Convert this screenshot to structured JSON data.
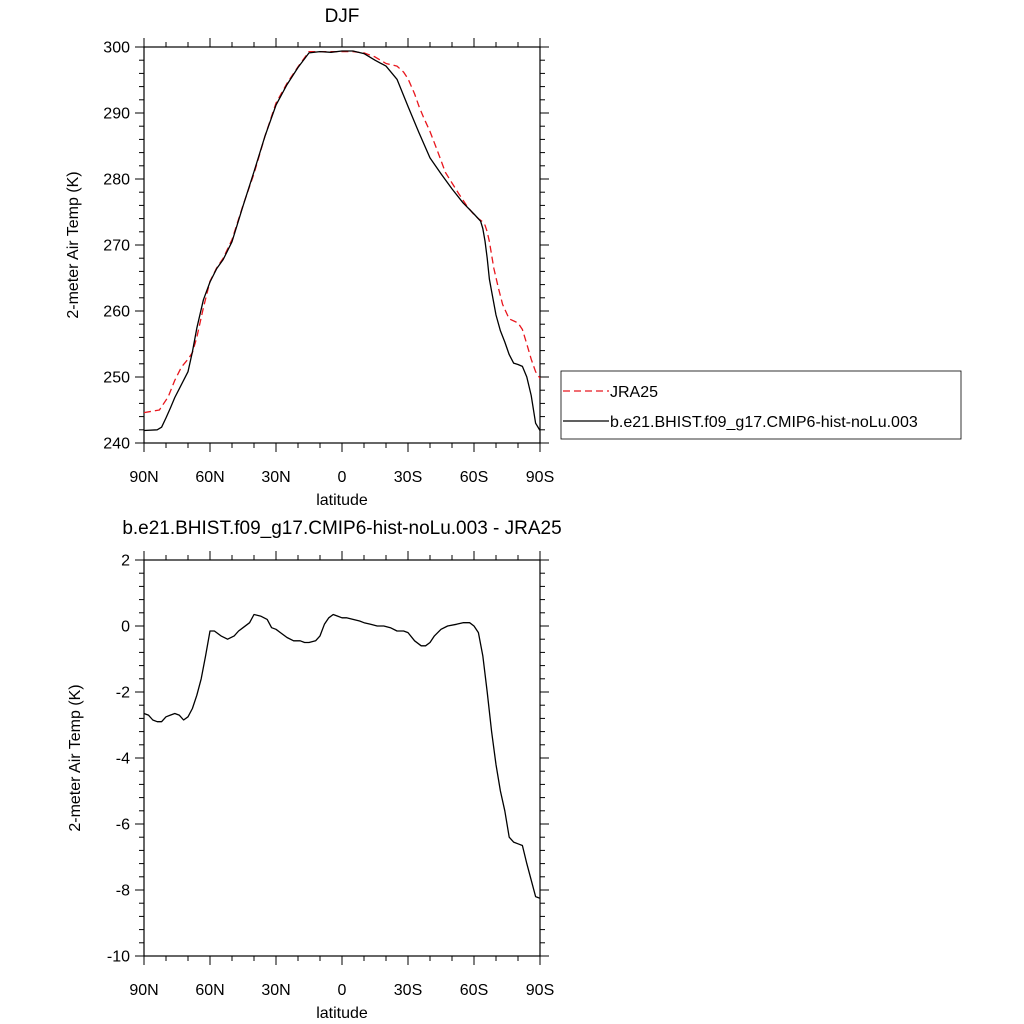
{
  "chart_data": [
    {
      "type": "line",
      "title": "DJF",
      "xlabel": "latitude",
      "ylabel": "2-meter Air Temp (K)",
      "xlim": [
        90,
        -90
      ],
      "ylim": [
        240,
        300
      ],
      "xticks": [
        90,
        60,
        30,
        0,
        -30,
        -60,
        -90
      ],
      "xtick_labels": [
        "90N",
        "60N",
        "30N",
        "0",
        "30S",
        "60S",
        "90S"
      ],
      "yticks": [
        240,
        250,
        260,
        270,
        280,
        290,
        300
      ],
      "ytick_labels": [
        "240",
        "250",
        "260",
        "270",
        "280",
        "290",
        "300"
      ],
      "legend_placement": "right",
      "grid": false,
      "series": [
        {
          "name": "JRA25",
          "color": "#e8161d",
          "dash": "dashed",
          "x": [
            90,
            83,
            79,
            76,
            73,
            70,
            68,
            66,
            63,
            60,
            57,
            54,
            50,
            45,
            40,
            35,
            30,
            25,
            20,
            15,
            10,
            5,
            0,
            -5,
            -10,
            -15,
            -20,
            -25,
            -28,
            -30,
            -33,
            -35,
            -37,
            -40,
            -43,
            -45,
            -47,
            -50,
            -53,
            -55,
            -57,
            -60,
            -62,
            -64,
            -65,
            -66,
            -67,
            -69,
            -71,
            -73,
            -76,
            -80,
            -82,
            -84,
            -86,
            -88,
            -90
          ],
          "y": [
            244.6,
            245.0,
            247.0,
            249.5,
            251.5,
            252.7,
            253.7,
            256.0,
            260.5,
            264.5,
            266.5,
            268.0,
            270.8,
            276.0,
            280.8,
            286.5,
            291.5,
            294.5,
            297.0,
            299.3,
            299.3,
            299.3,
            299.3,
            299.3,
            299.1,
            298.5,
            297.5,
            297.1,
            296.2,
            295.2,
            292.9,
            291.0,
            289.4,
            287.2,
            284.6,
            282.8,
            281.0,
            279.4,
            277.8,
            276.8,
            275.8,
            274.6,
            274.0,
            273.5,
            273.0,
            272.0,
            270.5,
            266.5,
            263.6,
            261.0,
            258.8,
            258.2,
            257.2,
            255.0,
            252.7,
            250.8,
            249.8
          ]
        },
        {
          "name": "b.e21.BHIST.f09_g17.CMIP6-hist-noLu.003",
          "color": "#000000",
          "dash": "solid",
          "x": [
            90,
            84,
            82,
            80,
            78,
            76,
            74,
            72,
            70,
            68,
            66,
            63,
            60,
            57,
            54,
            50,
            45,
            40,
            35,
            30,
            25,
            20,
            15,
            10,
            5,
            0,
            -5,
            -10,
            -15,
            -20,
            -25,
            -30,
            -35,
            -40,
            -45,
            -50,
            -55,
            -60,
            -63,
            -64,
            -65,
            -66,
            -67,
            -68,
            -70,
            -72,
            -74,
            -76,
            -78,
            -80,
            -82,
            -84,
            -86,
            -88,
            -90
          ],
          "y": [
            241.9,
            242.0,
            242.4,
            243.8,
            245.3,
            246.9,
            248.2,
            249.5,
            250.8,
            253.8,
            257.4,
            261.7,
            264.4,
            266.4,
            267.8,
            270.5,
            275.9,
            281.1,
            286.5,
            291.2,
            294.3,
            296.9,
            299.1,
            299.3,
            299.2,
            299.4,
            299.4,
            299.0,
            298.0,
            297.1,
            295.1,
            291.0,
            287.0,
            283.2,
            280.8,
            278.5,
            276.4,
            274.7,
            273.6,
            272.5,
            270.6,
            268.0,
            264.8,
            263.0,
            259.4,
            257.0,
            255.3,
            253.4,
            252.1,
            251.9,
            251.6,
            250.0,
            247.2,
            243.0,
            241.9
          ]
        }
      ]
    },
    {
      "type": "line",
      "title": "b.e21.BHIST.f09_g17.CMIP6-hist-noLu.003 - JRA25",
      "xlabel": "latitude",
      "ylabel": "2-meter Air Temp (K)",
      "xlim": [
        90,
        -90
      ],
      "ylim": [
        -10,
        2
      ],
      "xticks": [
        90,
        60,
        30,
        0,
        -30,
        -60,
        -90
      ],
      "xtick_labels": [
        "90N",
        "60N",
        "30N",
        "0",
        "30S",
        "60S",
        "90S"
      ],
      "yticks": [
        -10,
        -8,
        -6,
        -4,
        -2,
        0,
        2
      ],
      "ytick_labels": [
        "-10",
        "-8",
        "-6",
        "-4",
        "-2",
        "0",
        "2"
      ],
      "grid": false,
      "series": [
        {
          "color": "#000000",
          "dash": "solid",
          "x": [
            90,
            88,
            86,
            84,
            82,
            80,
            78,
            76,
            74,
            72,
            70,
            68,
            66,
            64,
            62,
            60,
            58,
            55,
            52,
            49,
            47,
            45,
            42,
            40,
            37,
            34,
            32,
            30,
            28,
            25,
            22,
            19,
            17,
            15,
            12,
            10,
            8,
            6,
            4,
            2,
            0,
            -2,
            -5,
            -8,
            -10,
            -13,
            -16,
            -19,
            -22,
            -25,
            -28,
            -30,
            -33,
            -36,
            -38,
            -40,
            -42,
            -45,
            -48,
            -52,
            -55,
            -58,
            -60,
            -62,
            -64,
            -66,
            -68,
            -70,
            -72,
            -74,
            -76,
            -78,
            -80,
            -82,
            -84,
            -86,
            -88,
            -90
          ],
          "y": [
            -2.65,
            -2.7,
            -2.85,
            -2.9,
            -2.9,
            -2.75,
            -2.7,
            -2.65,
            -2.7,
            -2.85,
            -2.75,
            -2.5,
            -2.1,
            -1.6,
            -0.9,
            -0.15,
            -0.15,
            -0.3,
            -0.4,
            -0.3,
            -0.15,
            -0.05,
            0.1,
            0.35,
            0.3,
            0.2,
            -0.05,
            -0.1,
            -0.2,
            -0.35,
            -0.45,
            -0.45,
            -0.5,
            -0.5,
            -0.45,
            -0.3,
            0.05,
            0.25,
            0.35,
            0.3,
            0.25,
            0.25,
            0.2,
            0.15,
            0.1,
            0.05,
            0.0,
            0.0,
            -0.05,
            -0.15,
            -0.15,
            -0.2,
            -0.45,
            -0.6,
            -0.6,
            -0.5,
            -0.3,
            -0.1,
            0.0,
            0.05,
            0.1,
            0.1,
            0.0,
            -0.2,
            -0.9,
            -2.0,
            -3.2,
            -4.2,
            -5.0,
            -5.6,
            -6.4,
            -6.55,
            -6.6,
            -6.65,
            -7.2,
            -7.7,
            -8.2,
            -8.25
          ]
        }
      ]
    }
  ]
}
